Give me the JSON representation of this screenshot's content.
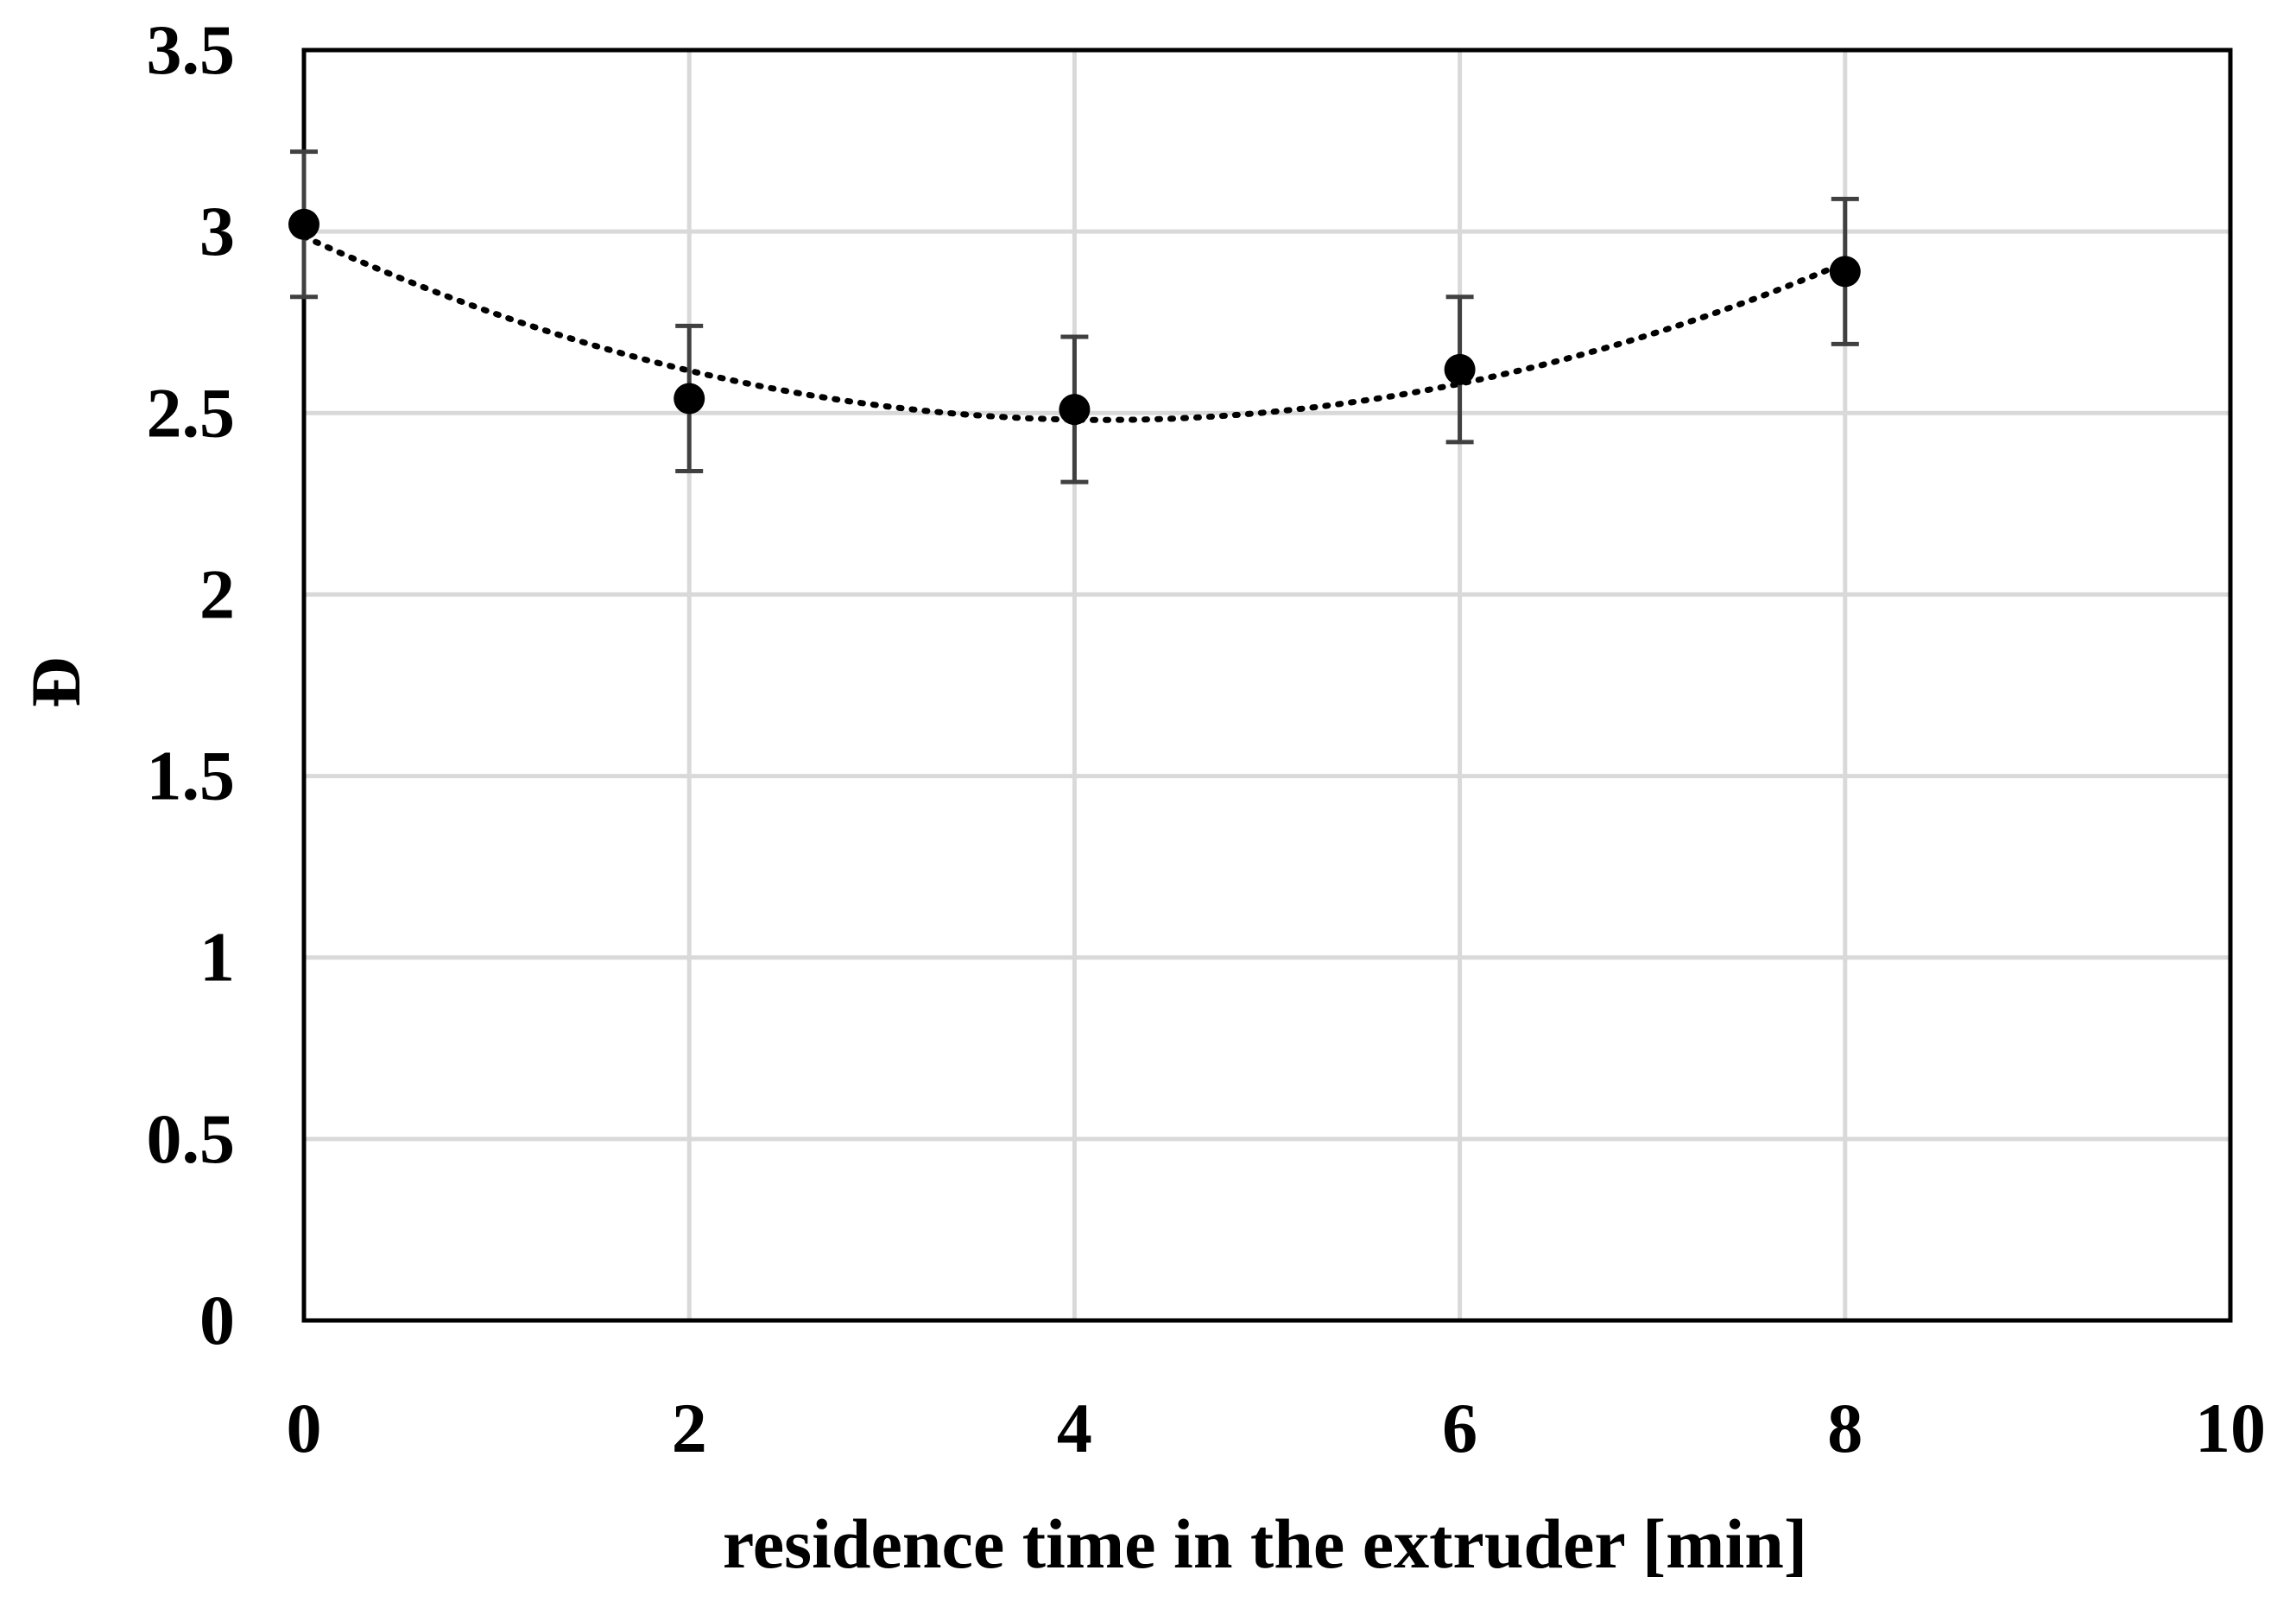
{
  "chart_data": {
    "type": "scatter",
    "title": "",
    "xlabel": "residence time in  the extruder [min]",
    "ylabel": "Đ",
    "xlim": [
      0,
      10
    ],
    "ylim": [
      0,
      3.5
    ],
    "x_ticks": [
      "0",
      "2",
      "4",
      "6",
      "8",
      "10"
    ],
    "y_ticks": [
      "0",
      "0.5",
      "1",
      "1.5",
      "2",
      "2.5",
      "3",
      "3.5"
    ],
    "grid": true,
    "legend": "none",
    "series": [
      {
        "x": [
          0,
          2,
          4,
          6,
          8
        ],
        "y": [
          3.02,
          2.54,
          2.51,
          2.62,
          2.89
        ],
        "error": [
          0.2,
          0.2,
          0.2,
          0.2,
          0.2
        ],
        "marker": "circle",
        "color": "#000000"
      }
    ],
    "trendline": {
      "type": "polynomial",
      "style": "dotted",
      "color": "#000000"
    }
  }
}
